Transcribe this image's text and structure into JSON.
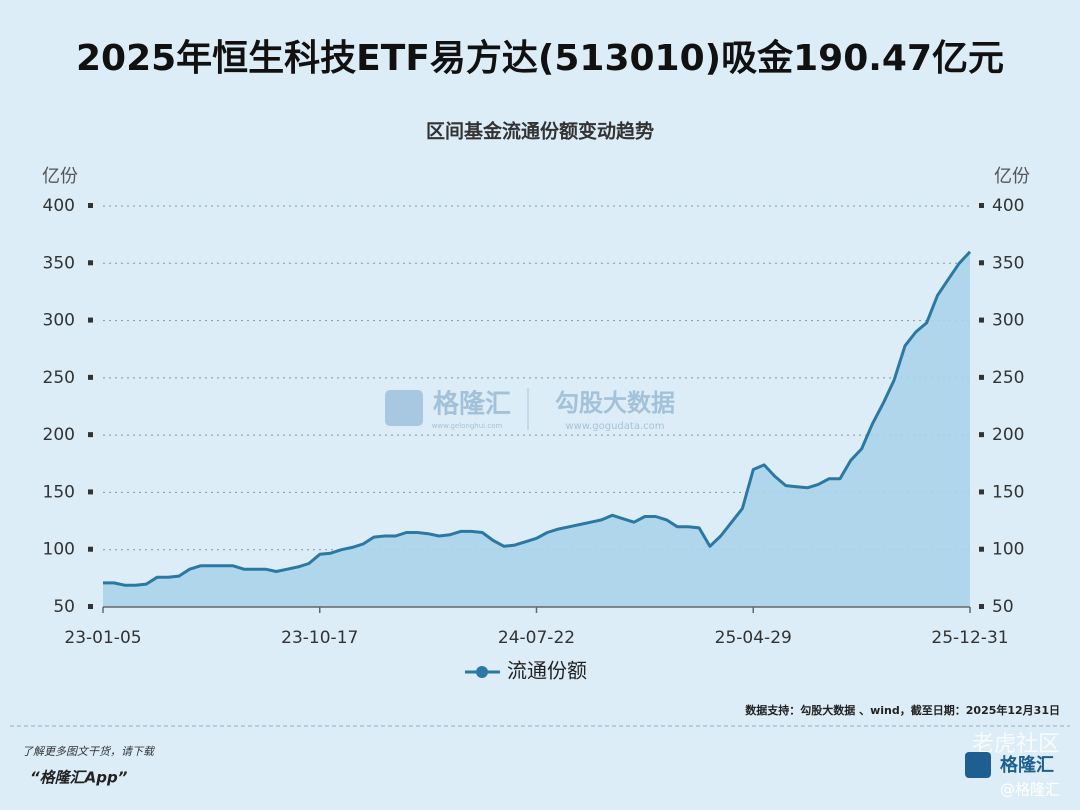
{
  "chart_data": {
    "type": "area",
    "title": "2025年恒生科技ETF易方达(513010)吸金190.47亿元",
    "subtitle": "区间基金流通份额变动趋势",
    "y_unit_left": "亿份",
    "y_unit_right": "亿份",
    "categories": [
      "23-01-05",
      null,
      null,
      null,
      null,
      null,
      null,
      null,
      null,
      null,
      null,
      null,
      null,
      null,
      null,
      null,
      null,
      null,
      null,
      null,
      "23-10-17",
      null,
      null,
      null,
      null,
      null,
      null,
      null,
      null,
      null,
      null,
      null,
      null,
      null,
      null,
      null,
      null,
      null,
      null,
      null,
      "24-07-22",
      null,
      null,
      null,
      null,
      null,
      null,
      null,
      null,
      null,
      null,
      null,
      null,
      null,
      null,
      null,
      null,
      null,
      null,
      null,
      "25-04-29",
      null,
      null,
      null,
      null,
      null,
      null,
      null,
      null,
      null,
      null,
      null,
      null,
      null,
      null,
      null,
      null,
      null,
      null,
      null,
      "25-12-31"
    ],
    "series": [
      {
        "name": "流通份额",
        "color": "#2a78a3",
        "fill": "#abd3ea",
        "values": [
          71,
          71,
          69,
          69,
          70,
          76,
          76,
          77,
          83,
          86,
          86,
          86,
          86,
          83,
          83,
          83,
          81,
          83,
          85,
          88,
          96,
          97,
          100,
          102,
          105,
          111,
          112,
          112,
          115,
          115,
          114,
          112,
          113,
          116,
          116,
          115,
          108,
          103,
          104,
          107,
          110,
          115,
          118,
          120,
          122,
          124,
          126,
          130,
          127,
          124,
          129,
          129,
          126,
          120,
          120,
          119,
          103,
          112,
          124,
          136,
          170,
          174,
          164,
          156,
          155,
          154,
          157,
          162,
          162,
          178,
          188,
          210,
          228,
          248,
          278,
          290,
          298,
          322,
          336,
          350,
          360
        ]
      }
    ],
    "ylim": [
      50,
      400
    ],
    "yticks": [
      50,
      100,
      150,
      200,
      250,
      300,
      350,
      400
    ],
    "grid": true
  },
  "watermark": {
    "brand": "格隆汇",
    "brand_url": "www.gelonghui.com",
    "partner": "勾股大数据",
    "partner_url": "www.gogudata.com"
  },
  "footer": {
    "source": "数据支持：勾股大数据 、wind，截至日期：2025年12月31日",
    "promo": "了解更多图文干货，请下载",
    "app": "“格隆汇App”",
    "community": "老虎社区",
    "handle": "@格隆汇",
    "logo": "格隆汇"
  }
}
